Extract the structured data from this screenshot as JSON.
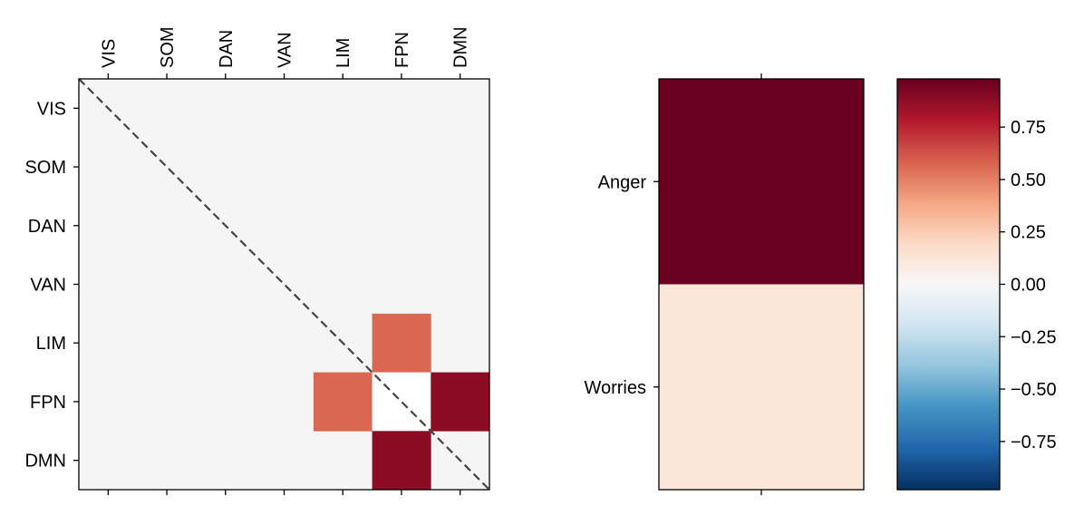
{
  "chart_data": [
    {
      "type": "heatmap",
      "labels": [
        "VIS",
        "SOM",
        "DAN",
        "VAN",
        "LIM",
        "FPN",
        "DMN"
      ],
      "values": [
        [
          0,
          0,
          0,
          0,
          0,
          0,
          0
        ],
        [
          0,
          0,
          0,
          0,
          0,
          0,
          0
        ],
        [
          0,
          0,
          0,
          0,
          0,
          0,
          0
        ],
        [
          0,
          0,
          0,
          0,
          0,
          0,
          0
        ],
        [
          0,
          0,
          0,
          0,
          0,
          0.58,
          0
        ],
        [
          0,
          0,
          0,
          0,
          0.58,
          0,
          0.9
        ],
        [
          0,
          0,
          0,
          0,
          0,
          0.9,
          0
        ]
      ],
      "diagonal_line": "dashed",
      "colormap": "RdBu_r",
      "vmin": -1,
      "vmax": 1,
      "background_color": "#f5f5f5"
    },
    {
      "type": "heatmap",
      "row_labels": [
        "Anger",
        "Worries"
      ],
      "values": [
        0.99,
        0.12
      ],
      "colormap": "RdBu_r",
      "vmin": -1,
      "vmax": 1
    }
  ],
  "colorbar": {
    "ticks": [
      0.75,
      0.5,
      0.25,
      0.0,
      -0.25,
      -0.5,
      -0.75
    ],
    "tick_labels": [
      "0.75",
      "0.50",
      "0.25",
      "0.00",
      "−0.25",
      "−0.50",
      "−0.75"
    ],
    "range": [
      -0.98,
      0.98
    ]
  }
}
